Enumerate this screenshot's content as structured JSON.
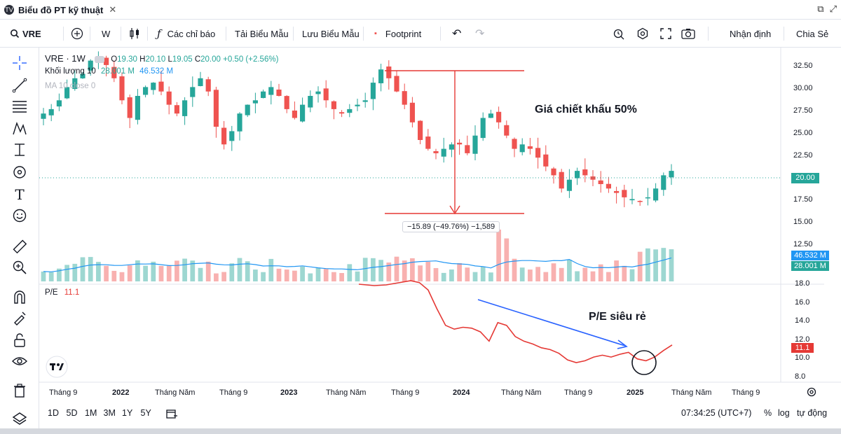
{
  "window": {
    "tab_title": "Biểu đồ PT kỹ thuật",
    "close_glyph": "✕"
  },
  "toolbar": {
    "symbol": "VRE",
    "interval": "W",
    "indicators_label": "Các chỉ báo",
    "load_template_label": "Tải Biểu Mẫu",
    "save_template_label": "Lưu Biểu Mẫu",
    "footprint_label": "Footprint",
    "ideas_label": "Nhận định",
    "share_label": "Chia Sẻ"
  },
  "legend": {
    "main_symbol": "VRE · 1W",
    "ohlc_o_label": "O",
    "ohlc_o": "19.30",
    "ohlc_h_label": "H",
    "ohlc_h": "20.10",
    "ohlc_l_label": "L",
    "ohlc_l": "19.05",
    "ohlc_c_label": "C",
    "ohlc_c": "20.00",
    "change": "+0.50 (+2.56%)",
    "volume_label": "Khối lượng 10",
    "volume_value": "28.001 M",
    "volume_ma": "46.532 M",
    "ma_label": "MA 10 close 0",
    "pe_label": "P/E",
    "pe_value": "11.1"
  },
  "annotations": {
    "discount_text": "Giá chiết khấu 50%",
    "pe_text": "P/E siêu rẻ",
    "measure_text": "−15.89 (−49.76%) −1,589"
  },
  "price_axis": {
    "ticks": [
      "32.50",
      "30.00",
      "27.50",
      "25.00",
      "22.50",
      "20.00",
      "17.50",
      "15.00",
      "12.50"
    ],
    "current_price": "20.00",
    "volume_ma_label": "46.532 M",
    "volume_label": "28.001 M"
  },
  "pe_axis": {
    "ticks": [
      "18.0",
      "16.0",
      "14.0",
      "12.0",
      "10.0",
      "8.0"
    ],
    "current": "11.1"
  },
  "time_axis": {
    "labels": [
      "Tháng 9",
      "2022",
      "Tháng Năm",
      "Tháng 9",
      "2023",
      "Tháng Năm",
      "Tháng 9",
      "2024",
      "Tháng Năm",
      "Tháng 9",
      "2025",
      "Tháng Năm",
      "Tháng 9"
    ]
  },
  "bottom_bar": {
    "ranges": [
      "1D",
      "5D",
      "1M",
      "3M",
      "1Y",
      "5Y"
    ],
    "clock": "07:34:25 (UTC+7)",
    "percent_label": "%",
    "log_label": "log",
    "auto_label": "tự động"
  },
  "colors": {
    "up": "#26a69a",
    "down": "#ef5350",
    "ma_line": "#2196f3",
    "pe_line": "#e53935",
    "annotation_red": "#e53935",
    "arrow_blue": "#2962ff",
    "price_label_bg": "#26a69a",
    "volume_ma_bg": "#2196f3",
    "pe_label_bg": "#e53935"
  },
  "icons": {
    "left_tools": [
      "crosshair-icon",
      "trend-line-icon",
      "fib-icon",
      "pattern-icon",
      "projection-icon",
      "brush-icon",
      "text-icon",
      "emoji-icon",
      "ruler-icon",
      "zoom-in-icon",
      "magnet-icon",
      "lock-drawing-icon",
      "lock-icon",
      "eye-icon",
      "trash-icon",
      "layers-icon"
    ]
  },
  "chart_data": {
    "type": "candlestick",
    "price_range": [
      13.5,
      33.5
    ],
    "close_series_weekly_approx": [
      26.5,
      27.0,
      28.0,
      29.5,
      30.5,
      31.0,
      32.5,
      33.0,
      32.0,
      30.5,
      28.0,
      26.0,
      28.5,
      29.5,
      30.0,
      29.0,
      27.5,
      26.5,
      28.0,
      29.5,
      30.5,
      29.0,
      25.0,
      23.0,
      24.5,
      26.5,
      27.5,
      28.0,
      29.0,
      29.5,
      28.5,
      27.0,
      26.0,
      27.5,
      28.5,
      29.0,
      28.0,
      27.0,
      26.5,
      27.0,
      27.5,
      28.0,
      30.0,
      31.5,
      30.5,
      29.0,
      27.5,
      25.5,
      23.5,
      22.5,
      22.0,
      22.5,
      23.0,
      23.0,
      22.0,
      24.0,
      26.0,
      26.5,
      25.5,
      24.0,
      22.5,
      23.0,
      22.5,
      21.5,
      20.5,
      19.5,
      18.0,
      19.0,
      20.0,
      19.5,
      19.0,
      18.5,
      18.0,
      17.5,
      17.0,
      16.8,
      16.5,
      17.0,
      18.0,
      19.5,
      20.0
    ],
    "pe_series_approx": [
      18.0,
      17.8,
      17.0,
      15.0,
      13.2,
      12.8,
      13.0,
      12.9,
      12.5,
      11.5,
      13.5,
      13.2,
      12.0,
      11.5,
      11.2,
      10.8,
      10.6,
      10.2,
      9.5,
      9.2,
      9.4,
      9.8,
      10.0,
      9.8,
      10.1,
      10.3,
      9.6,
      9.4,
      9.8,
      10.5,
      11.1
    ],
    "measure": {
      "change": -15.89,
      "change_pct": -49.76
    }
  }
}
